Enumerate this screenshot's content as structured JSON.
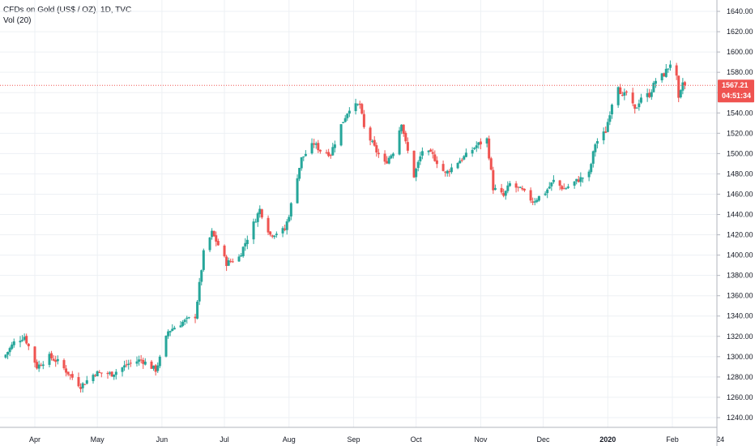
{
  "header": {
    "symbol_line": "CFDs on Gold (US$ / OZ), 1D, TVC",
    "volume_line": "Vol (20)"
  },
  "colors": {
    "up": "#26a69a",
    "down": "#ef5350",
    "grid": "#edf0f4",
    "axis_line": "#b2b5be",
    "price_line": "#ef5350",
    "badge": "#ef5350"
  },
  "chart_data": {
    "type": "candlestick",
    "title": "CFDs on Gold (US$ / OZ), 1D, TVC",
    "grid": true,
    "ylim": [
      1232,
      1652
    ],
    "y_ticks": [
      "1240.00",
      "1260.00",
      "1280.00",
      "1300.00",
      "1320.00",
      "1340.00",
      "1360.00",
      "1380.00",
      "1400.00",
      "1420.00",
      "1440.00",
      "1460.00",
      "1480.00",
      "1500.00",
      "1520.00",
      "1540.00",
      "1560.00",
      "1580.00",
      "1600.00",
      "1620.00",
      "1640.00"
    ],
    "x_ticks": [
      {
        "label": "Apr",
        "date": "2019-04-01"
      },
      {
        "label": "May",
        "date": "2019-05-01"
      },
      {
        "label": "Jun",
        "date": "2019-06-01"
      },
      {
        "label": "Jul",
        "date": "2019-07-01"
      },
      {
        "label": "Aug",
        "date": "2019-08-01"
      },
      {
        "label": "Sep",
        "date": "2019-09-01"
      },
      {
        "label": "Oct",
        "date": "2019-10-01"
      },
      {
        "label": "Nov",
        "date": "2019-11-01"
      },
      {
        "label": "Dec",
        "date": "2019-12-01"
      },
      {
        "label": "2020",
        "date": "2020-01-01",
        "bold": true
      },
      {
        "label": "Feb",
        "date": "2020-02-01"
      },
      {
        "label": "24",
        "date": "2020-02-24"
      }
    ],
    "last_price": {
      "value": 1567.21,
      "label": "1567.21",
      "countdown": "04:51:34"
    },
    "date_range": [
      "2019-03-18",
      "2020-02-07"
    ],
    "close_anchors": [
      [
        "2019-03-18",
        1302
      ],
      [
        "2019-03-22",
        1314
      ],
      [
        "2019-03-27",
        1320
      ],
      [
        "2019-04-02",
        1290
      ],
      [
        "2019-04-08",
        1300
      ],
      [
        "2019-04-12",
        1295
      ],
      [
        "2019-04-16",
        1286
      ],
      [
        "2019-04-23",
        1271
      ],
      [
        "2019-04-30",
        1284
      ],
      [
        "2019-05-08",
        1283
      ],
      [
        "2019-05-16",
        1293
      ],
      [
        "2019-05-22",
        1297
      ],
      [
        "2019-05-29",
        1287
      ],
      [
        "2019-05-31",
        1298
      ],
      [
        "2019-06-04",
        1325
      ],
      [
        "2019-06-10",
        1333
      ],
      [
        "2019-06-17",
        1340
      ],
      [
        "2019-06-21",
        1402
      ],
      [
        "2019-06-25",
        1422
      ],
      [
        "2019-06-28",
        1410
      ],
      [
        "2019-07-02",
        1392
      ],
      [
        "2019-07-08",
        1398
      ],
      [
        "2019-07-12",
        1417
      ],
      [
        "2019-07-18",
        1445
      ],
      [
        "2019-07-23",
        1420
      ],
      [
        "2019-07-30",
        1425
      ],
      [
        "2019-08-01",
        1440
      ],
      [
        "2019-08-05",
        1478
      ],
      [
        "2019-08-07",
        1495
      ],
      [
        "2019-08-13",
        1510
      ],
      [
        "2019-08-16",
        1503
      ],
      [
        "2019-08-21",
        1500
      ],
      [
        "2019-08-26",
        1528
      ],
      [
        "2019-08-30",
        1545
      ],
      [
        "2019-09-04",
        1548
      ],
      [
        "2019-09-06",
        1525
      ],
      [
        "2019-09-12",
        1502
      ],
      [
        "2019-09-16",
        1490
      ],
      [
        "2019-09-20",
        1502
      ],
      [
        "2019-09-24",
        1531
      ],
      [
        "2019-09-26",
        1510
      ],
      [
        "2019-09-30",
        1478
      ],
      [
        "2019-10-04",
        1503
      ],
      [
        "2019-10-09",
        1498
      ],
      [
        "2019-10-15",
        1480
      ],
      [
        "2019-10-21",
        1492
      ],
      [
        "2019-10-25",
        1498
      ],
      [
        "2019-10-30",
        1508
      ],
      [
        "2019-11-04",
        1514
      ],
      [
        "2019-11-07",
        1466
      ],
      [
        "2019-11-12",
        1458
      ],
      [
        "2019-11-15",
        1470
      ],
      [
        "2019-11-21",
        1463
      ],
      [
        "2019-11-26",
        1453
      ],
      [
        "2019-12-02",
        1462
      ],
      [
        "2019-12-06",
        1473
      ],
      [
        "2019-12-11",
        1465
      ],
      [
        "2019-12-17",
        1473
      ],
      [
        "2019-12-23",
        1480
      ],
      [
        "2019-12-26",
        1510
      ],
      [
        "2019-12-31",
        1522
      ],
      [
        "2020-01-03",
        1550
      ],
      [
        "2020-01-06",
        1568
      ],
      [
        "2020-01-08",
        1555
      ],
      [
        "2020-01-10",
        1560
      ],
      [
        "2020-01-14",
        1542
      ],
      [
        "2020-01-17",
        1556
      ],
      [
        "2020-01-21",
        1558
      ],
      [
        "2020-01-24",
        1572
      ],
      [
        "2020-01-28",
        1578
      ],
      [
        "2020-01-30",
        1585
      ],
      [
        "2020-01-31",
        1589
      ],
      [
        "2020-02-03",
        1574
      ],
      [
        "2020-02-04",
        1552
      ],
      [
        "2020-02-05",
        1560
      ],
      [
        "2020-02-06",
        1570
      ],
      [
        "2020-02-07",
        1567.21
      ]
    ]
  }
}
